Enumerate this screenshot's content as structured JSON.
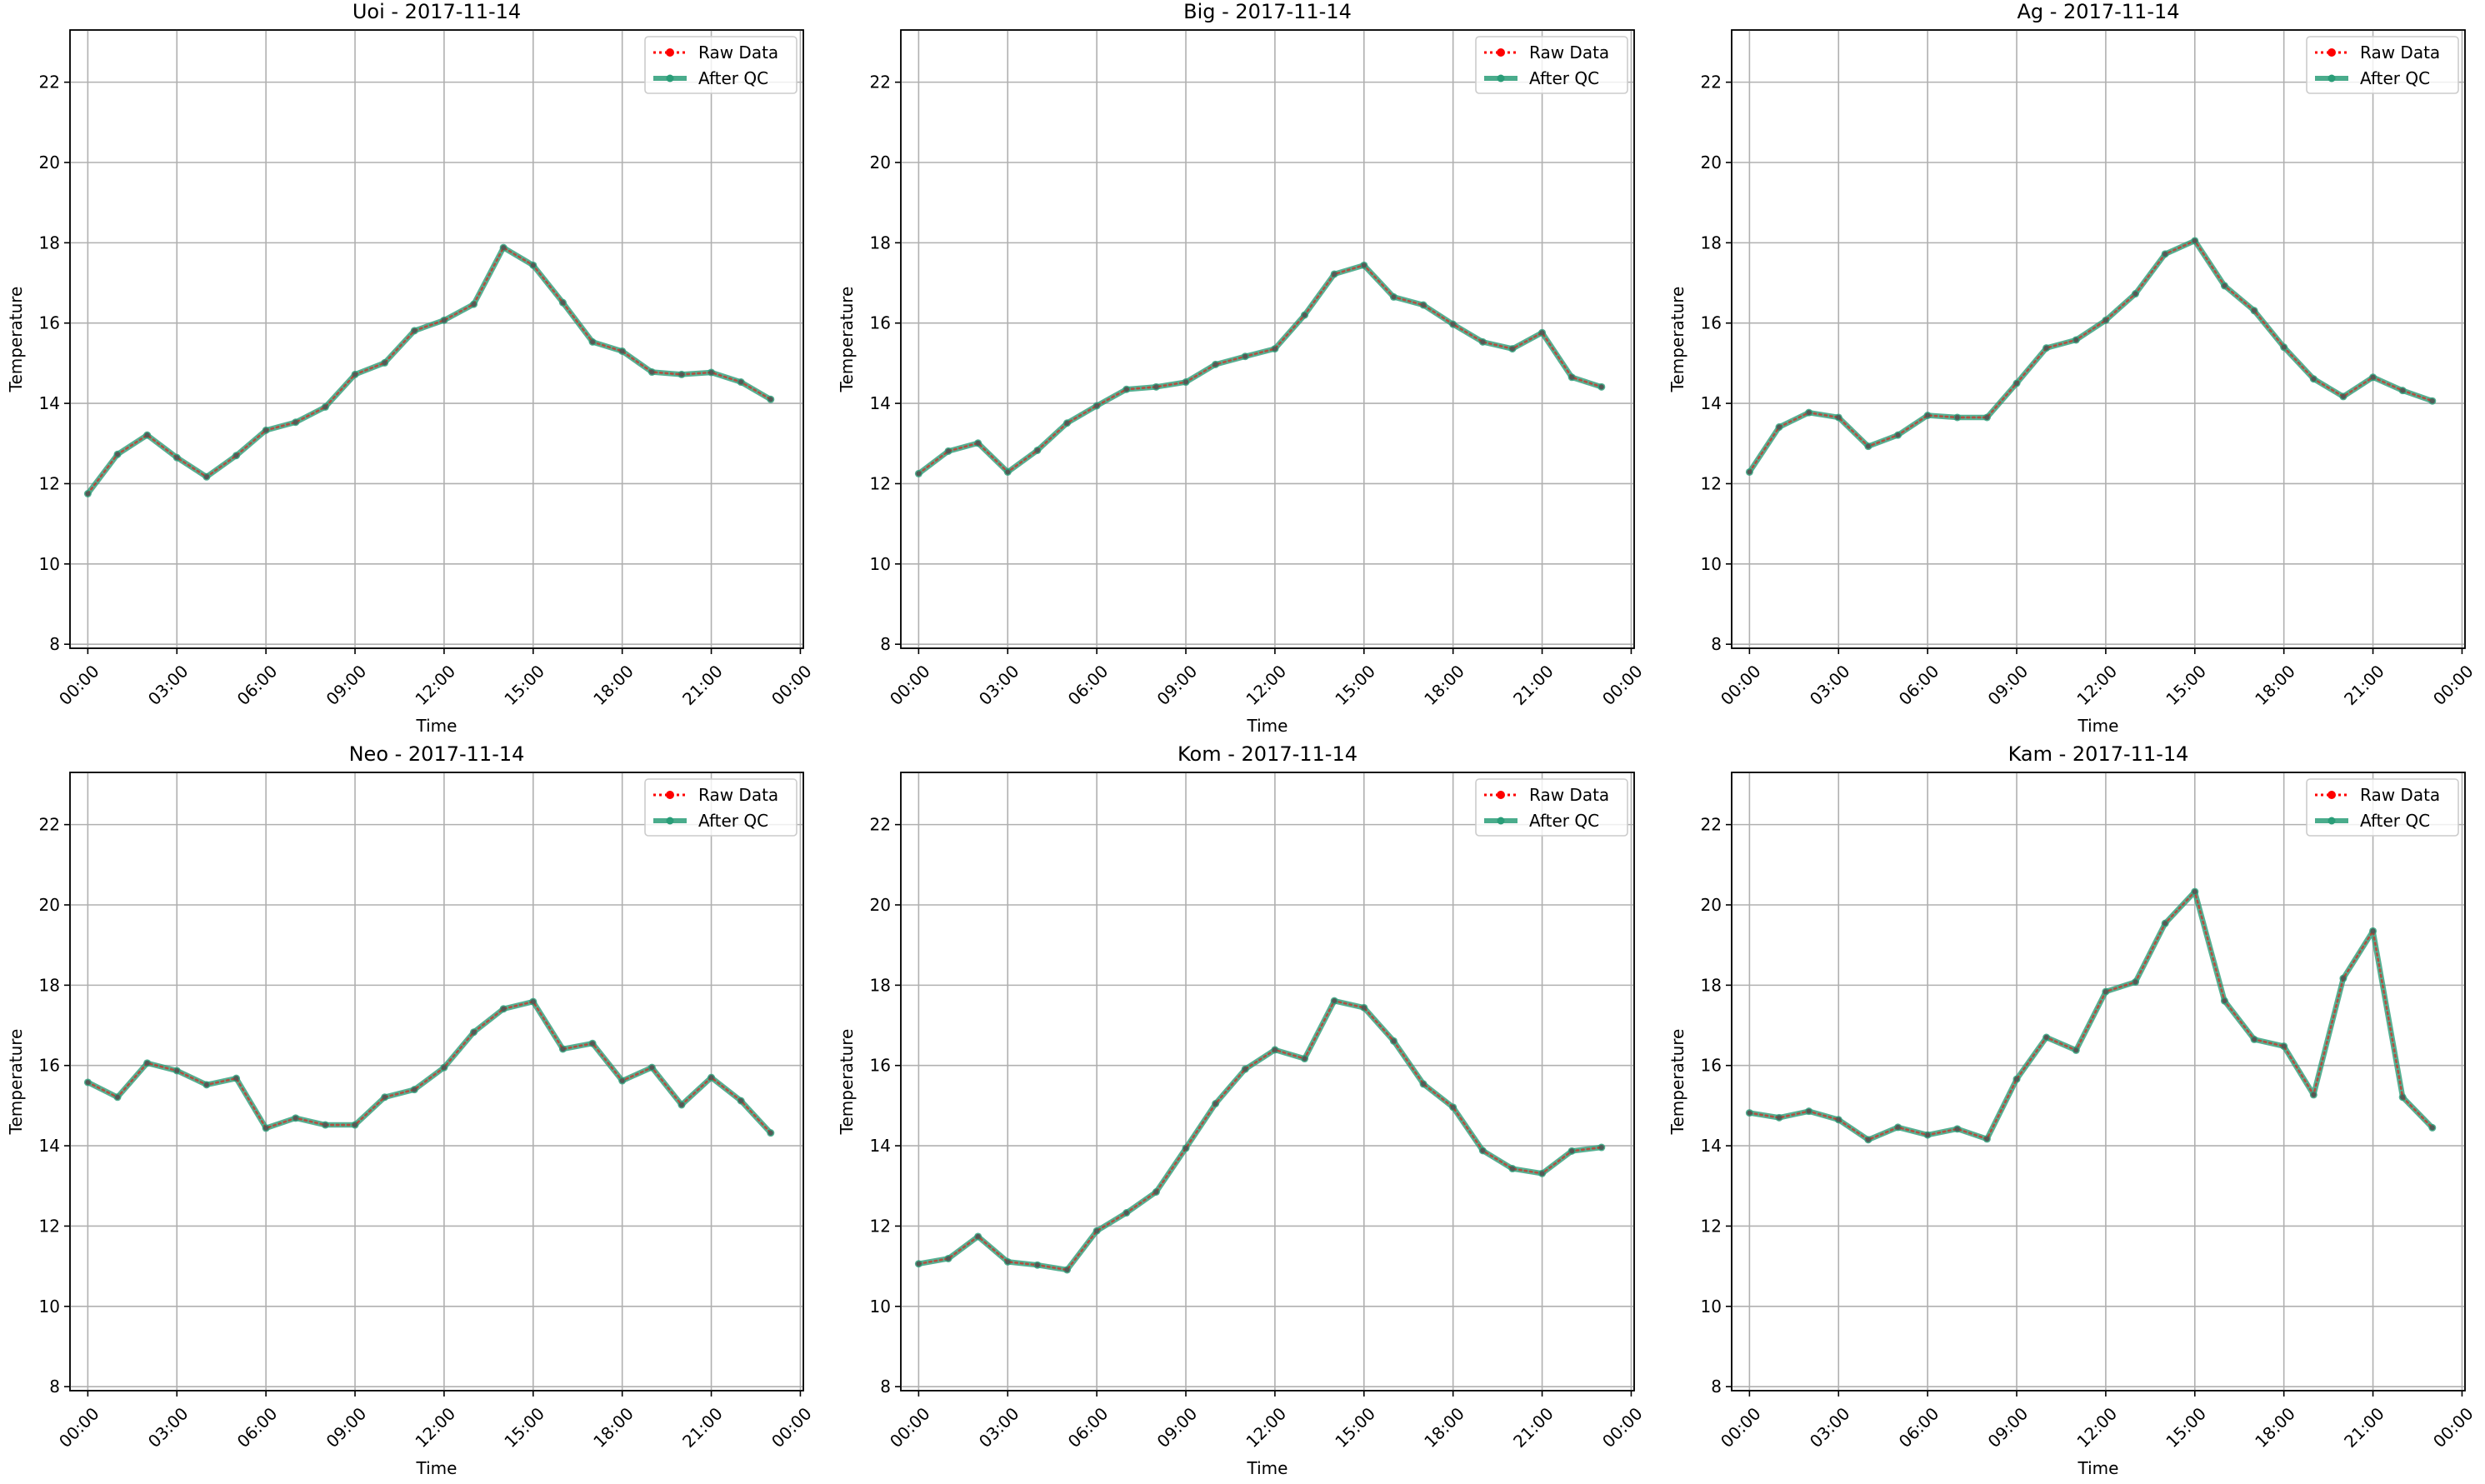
{
  "chart_data": [
    {
      "type": "line",
      "title": "Uoi - 2017-11-14",
      "xlabel": "Time",
      "ylabel": "Temperature",
      "x": [
        "00:00",
        "01:00",
        "02:00",
        "03:00",
        "04:00",
        "05:00",
        "06:00",
        "07:00",
        "08:00",
        "09:00",
        "10:00",
        "11:00",
        "12:00",
        "13:00",
        "14:00",
        "15:00",
        "16:00",
        "17:00",
        "18:00",
        "19:00",
        "20:00",
        "21:00",
        "22:00",
        "23:00"
      ],
      "xticks": [
        "00:00",
        "03:00",
        "06:00",
        "09:00",
        "12:00",
        "15:00",
        "18:00",
        "21:00",
        "00:00"
      ],
      "yticks": [
        8,
        10,
        12,
        14,
        16,
        18,
        20,
        22
      ],
      "ylim": [
        7.9,
        23.3
      ],
      "xlim_hours": [
        -0.6,
        24.1
      ],
      "grid": true,
      "legend_position": "upper right",
      "series": [
        {
          "name": "Raw Data",
          "color": "#ff0000",
          "style": "dotted",
          "values": [
            11.75,
            12.73,
            13.21,
            12.65,
            12.17,
            12.7,
            13.33,
            13.53,
            13.91,
            14.72,
            15.01,
            15.81,
            16.07,
            16.47,
            17.88,
            17.44,
            16.51,
            15.53,
            15.3,
            14.78,
            14.72,
            14.77,
            14.53,
            14.1
          ]
        },
        {
          "name": "After QC",
          "color": "#2a9d78",
          "style": "solid",
          "values": [
            11.75,
            12.73,
            13.21,
            12.65,
            12.17,
            12.7,
            13.33,
            13.53,
            13.91,
            14.72,
            15.01,
            15.81,
            16.07,
            16.47,
            17.88,
            17.44,
            16.51,
            15.53,
            15.3,
            14.78,
            14.72,
            14.77,
            14.53,
            14.1
          ]
        }
      ]
    },
    {
      "type": "line",
      "title": "Big - 2017-11-14",
      "xlabel": "Time",
      "ylabel": "Temperature",
      "x": [
        "00:00",
        "01:00",
        "02:00",
        "03:00",
        "04:00",
        "05:00",
        "06:00",
        "07:00",
        "08:00",
        "09:00",
        "10:00",
        "11:00",
        "12:00",
        "13:00",
        "14:00",
        "15:00",
        "16:00",
        "17:00",
        "18:00",
        "19:00",
        "20:00",
        "21:00",
        "22:00",
        "23:00"
      ],
      "xticks": [
        "00:00",
        "03:00",
        "06:00",
        "09:00",
        "12:00",
        "15:00",
        "18:00",
        "21:00",
        "00:00"
      ],
      "yticks": [
        8,
        10,
        12,
        14,
        16,
        18,
        20,
        22
      ],
      "ylim": [
        7.9,
        23.3
      ],
      "xlim_hours": [
        -0.6,
        24.1
      ],
      "grid": true,
      "legend_position": "upper right",
      "series": [
        {
          "name": "Raw Data",
          "color": "#ff0000",
          "style": "dotted",
          "values": [
            12.25,
            12.81,
            13.01,
            12.29,
            12.83,
            13.51,
            13.94,
            14.35,
            14.41,
            14.53,
            14.97,
            15.17,
            15.36,
            16.2,
            17.22,
            17.44,
            16.65,
            16.45,
            15.97,
            15.53,
            15.36,
            15.76,
            14.65,
            14.41
          ]
        },
        {
          "name": "After QC",
          "color": "#2a9d78",
          "style": "solid",
          "values": [
            12.25,
            12.81,
            13.01,
            12.29,
            12.83,
            13.51,
            13.94,
            14.35,
            14.41,
            14.53,
            14.97,
            15.17,
            15.36,
            16.2,
            17.22,
            17.44,
            16.65,
            16.45,
            15.97,
            15.53,
            15.36,
            15.76,
            14.65,
            14.41
          ]
        }
      ]
    },
    {
      "type": "line",
      "title": "Ag - 2017-11-14",
      "xlabel": "Time",
      "ylabel": "Temperature",
      "x": [
        "00:00",
        "01:00",
        "02:00",
        "03:00",
        "04:00",
        "05:00",
        "06:00",
        "07:00",
        "08:00",
        "09:00",
        "10:00",
        "11:00",
        "12:00",
        "13:00",
        "14:00",
        "15:00",
        "16:00",
        "17:00",
        "18:00",
        "19:00",
        "20:00",
        "21:00",
        "22:00",
        "23:00"
      ],
      "xticks": [
        "00:00",
        "03:00",
        "06:00",
        "09:00",
        "12:00",
        "15:00",
        "18:00",
        "21:00",
        "00:00"
      ],
      "yticks": [
        8,
        10,
        12,
        14,
        16,
        18,
        20,
        22
      ],
      "ylim": [
        7.9,
        23.3
      ],
      "xlim_hours": [
        -0.6,
        24.1
      ],
      "grid": true,
      "legend_position": "upper right",
      "series": [
        {
          "name": "Raw Data",
          "color": "#ff0000",
          "style": "dotted",
          "values": [
            12.29,
            13.41,
            13.77,
            13.65,
            12.93,
            13.21,
            13.7,
            13.65,
            13.65,
            14.5,
            15.38,
            15.58,
            16.07,
            16.73,
            17.72,
            18.05,
            16.93,
            16.31,
            15.4,
            14.61,
            14.17,
            14.65,
            14.32,
            14.06
          ]
        },
        {
          "name": "After QC",
          "color": "#2a9d78",
          "style": "solid",
          "values": [
            12.29,
            13.41,
            13.77,
            13.65,
            12.93,
            13.21,
            13.7,
            13.65,
            13.65,
            14.5,
            15.38,
            15.58,
            16.07,
            16.73,
            17.72,
            18.05,
            16.93,
            16.31,
            15.4,
            14.61,
            14.17,
            14.65,
            14.32,
            14.06
          ]
        }
      ]
    },
    {
      "type": "line",
      "title": "Neo - 2017-11-14",
      "xlabel": "Time",
      "ylabel": "Temperature",
      "x": [
        "00:00",
        "01:00",
        "02:00",
        "03:00",
        "04:00",
        "05:00",
        "06:00",
        "07:00",
        "08:00",
        "09:00",
        "10:00",
        "11:00",
        "12:00",
        "13:00",
        "14:00",
        "15:00",
        "16:00",
        "17:00",
        "18:00",
        "19:00",
        "20:00",
        "21:00",
        "22:00",
        "23:00"
      ],
      "xticks": [
        "00:00",
        "03:00",
        "06:00",
        "09:00",
        "12:00",
        "15:00",
        "18:00",
        "21:00",
        "00:00"
      ],
      "yticks": [
        8,
        10,
        12,
        14,
        16,
        18,
        20,
        22
      ],
      "ylim": [
        7.9,
        23.3
      ],
      "xlim_hours": [
        -0.6,
        24.1
      ],
      "grid": true,
      "legend_position": "upper right",
      "series": [
        {
          "name": "Raw Data",
          "color": "#ff0000",
          "style": "dotted",
          "values": [
            15.58,
            15.21,
            16.06,
            15.87,
            15.52,
            15.68,
            14.44,
            14.69,
            14.52,
            14.52,
            15.21,
            15.4,
            15.95,
            16.83,
            17.41,
            17.59,
            16.41,
            16.55,
            15.62,
            15.95,
            15.02,
            15.7,
            15.12,
            14.32
          ]
        },
        {
          "name": "After QC",
          "color": "#2a9d78",
          "style": "solid",
          "values": [
            15.58,
            15.21,
            16.06,
            15.87,
            15.52,
            15.68,
            14.44,
            14.69,
            14.52,
            14.52,
            15.21,
            15.4,
            15.95,
            16.83,
            17.41,
            17.59,
            16.41,
            16.55,
            15.62,
            15.95,
            15.02,
            15.7,
            15.12,
            14.32
          ]
        }
      ]
    },
    {
      "type": "line",
      "title": "Kom - 2017-11-14",
      "xlabel": "Time",
      "ylabel": "Temperature",
      "x": [
        "00:00",
        "01:00",
        "02:00",
        "03:00",
        "04:00",
        "05:00",
        "06:00",
        "07:00",
        "08:00",
        "09:00",
        "10:00",
        "11:00",
        "12:00",
        "13:00",
        "14:00",
        "15:00",
        "16:00",
        "17:00",
        "18:00",
        "19:00",
        "20:00",
        "21:00",
        "22:00",
        "23:00"
      ],
      "xticks": [
        "00:00",
        "03:00",
        "06:00",
        "09:00",
        "12:00",
        "15:00",
        "18:00",
        "21:00",
        "00:00"
      ],
      "yticks": [
        8,
        10,
        12,
        14,
        16,
        18,
        20,
        22
      ],
      "ylim": [
        7.9,
        23.3
      ],
      "xlim_hours": [
        -0.6,
        24.1
      ],
      "grid": true,
      "legend_position": "upper right",
      "series": [
        {
          "name": "Raw Data",
          "color": "#ff0000",
          "style": "dotted",
          "values": [
            11.06,
            11.19,
            11.74,
            11.11,
            11.03,
            10.91,
            11.88,
            12.33,
            12.85,
            13.94,
            15.05,
            15.91,
            16.39,
            16.17,
            17.61,
            17.44,
            16.61,
            15.54,
            14.96,
            13.88,
            13.43,
            13.31,
            13.87,
            13.96
          ]
        },
        {
          "name": "After QC",
          "color": "#2a9d78",
          "style": "solid",
          "values": [
            11.06,
            11.19,
            11.74,
            11.11,
            11.03,
            10.91,
            11.88,
            12.33,
            12.85,
            13.94,
            15.05,
            15.91,
            16.39,
            16.17,
            17.61,
            17.44,
            16.61,
            15.54,
            14.96,
            13.88,
            13.43,
            13.31,
            13.87,
            13.96
          ]
        }
      ]
    },
    {
      "type": "line",
      "title": "Kam - 2017-11-14",
      "xlabel": "Time",
      "ylabel": "Temperature",
      "x": [
        "00:00",
        "01:00",
        "02:00",
        "03:00",
        "04:00",
        "05:00",
        "06:00",
        "07:00",
        "08:00",
        "09:00",
        "10:00",
        "11:00",
        "12:00",
        "13:00",
        "14:00",
        "15:00",
        "16:00",
        "17:00",
        "18:00",
        "19:00",
        "20:00",
        "21:00",
        "22:00",
        "23:00"
      ],
      "xticks": [
        "00:00",
        "03:00",
        "06:00",
        "09:00",
        "12:00",
        "15:00",
        "18:00",
        "21:00",
        "00:00"
      ],
      "yticks": [
        8,
        10,
        12,
        14,
        16,
        18,
        20,
        22
      ],
      "ylim": [
        7.9,
        23.3
      ],
      "xlim_hours": [
        -0.6,
        24.1
      ],
      "grid": true,
      "legend_position": "upper right",
      "series": [
        {
          "name": "Raw Data",
          "color": "#ff0000",
          "style": "dotted",
          "values": [
            14.82,
            14.7,
            14.86,
            14.65,
            14.15,
            14.46,
            14.27,
            14.42,
            14.17,
            15.66,
            16.7,
            16.38,
            17.84,
            18.08,
            19.54,
            20.33,
            17.61,
            16.65,
            16.48,
            15.27,
            18.17,
            19.35,
            15.21,
            14.45
          ]
        },
        {
          "name": "After QC",
          "color": "#2a9d78",
          "style": "solid",
          "values": [
            14.82,
            14.7,
            14.86,
            14.65,
            14.15,
            14.46,
            14.27,
            14.42,
            14.17,
            15.66,
            16.7,
            16.38,
            17.84,
            18.08,
            19.54,
            20.33,
            17.61,
            16.65,
            16.48,
            15.27,
            18.17,
            19.35,
            15.21,
            14.45
          ]
        }
      ]
    }
  ]
}
